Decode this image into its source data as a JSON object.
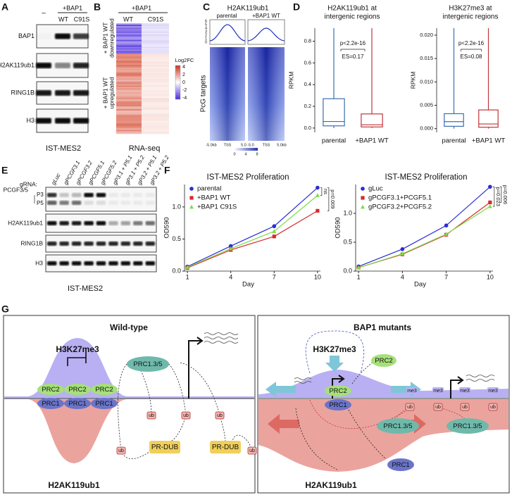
{
  "panels": {
    "A": {
      "label": "A",
      "lane_header": "–",
      "treatment": "+BAP1",
      "lanes": [
        "WT",
        "C91S"
      ],
      "rows": [
        "BAP1",
        "H2AK119ub1",
        "RING1B",
        "H3"
      ],
      "caption": "IST-MES2"
    },
    "B": {
      "label": "B",
      "treatment": "+BAP1",
      "columns": [
        "WT",
        "C91S"
      ],
      "groups": [
        [
          "+ BAP1 WT",
          "downregulated"
        ],
        [
          "+ BAP1 WT",
          "upregulated"
        ]
      ],
      "legend_title": "Log2FC",
      "legend_ticks": [
        4,
        2,
        0,
        -2,
        -4
      ],
      "caption": "RNA-seq"
    },
    "C": {
      "label": "C",
      "title": "H2AK119ub1",
      "columns": [
        "parental",
        "+BAP1 WT"
      ],
      "profile_ticks": [
        6,
        5,
        4,
        3,
        2,
        1,
        0
      ],
      "row_label": "PcG targets",
      "x_labels": [
        "-5.0kb",
        "TSS",
        "5.0",
        "-5.0",
        "TSS",
        "5.0kb"
      ],
      "scale_ticks": [
        0,
        4,
        8
      ]
    },
    "D": {
      "label": "D"
    },
    "E": {
      "label": "E",
      "guide_label": "gRNA:",
      "lanes": [
        "gLuc",
        "gPCGF3.1",
        "gPCGF3.2",
        "gPCGF5.1",
        "gPCGF5.2",
        "gP3.1 + P5.1",
        "gP3.1 + P5.2",
        "gP3.2 + P5.1",
        "gP3.2 + P5.2"
      ],
      "rows": [
        "PCGF3/5",
        "H2AK119ub1",
        "RING1B",
        "H3"
      ],
      "isoforms": [
        "P3",
        "P5"
      ],
      "caption": "IST-MES2"
    },
    "F": {
      "label": "F"
    },
    "G": {
      "label": "G",
      "wild_type": {
        "title": "Wild-type",
        "mark": "H3K27me3",
        "prc2": [
          "PRC2",
          "PRC2",
          "PRC2"
        ],
        "prc1": [
          "PRC1",
          "PRC1",
          "PRC1"
        ],
        "reader": "PRC1.3/5",
        "ub": [
          "ub",
          "ub",
          "ub",
          "ub",
          "ub"
        ],
        "dub": [
          "PR-DUB",
          "PR-DUB"
        ],
        "ubiquitin": "H2AK119ub1"
      },
      "mutant": {
        "title": "BAP1 mutants",
        "mark": "H3K27me3",
        "prc2": [
          "PRC2",
          "PRC2"
        ],
        "prc1": [
          "PRC1",
          "PRC1"
        ],
        "reader": [
          "PRC1.3/5",
          "PRC1.3/5"
        ],
        "me3": [
          "me3",
          "me3",
          "me3",
          "me3"
        ],
        "ub": [
          "ub",
          "ub",
          "ub",
          "ub"
        ],
        "ubiquitin": "H2AK119ub1"
      }
    }
  },
  "chart_data": [
    {
      "type": "box",
      "title": [
        "H2AK119ub1 at",
        "intergenic regions"
      ],
      "y_label": "RPKM",
      "categories": [
        "parental",
        "+BAP1 WT"
      ],
      "colors": [
        "#3a6fb0",
        "#c0363a"
      ],
      "whisker_low": [
        0,
        0
      ],
      "q1": [
        0.02,
        0.01
      ],
      "median": [
        0.06,
        0.03
      ],
      "q3": [
        0.27,
        0.13
      ],
      "whisker_high": [
        0.92,
        0.92
      ],
      "ylim": [
        -0.04,
        0.92
      ],
      "yticks": [
        {
          "value": 0,
          "label": "0.0"
        },
        {
          "value": 0.2,
          "label": "0.2"
        },
        {
          "value": 0.4,
          "label": "0.4"
        },
        {
          "value": 0.6,
          "label": "0.6"
        },
        {
          "value": 0.8,
          "label": "0.8"
        }
      ],
      "annotations": [
        "p<2.2e-16",
        "ES=0.17"
      ]
    },
    {
      "type": "box",
      "title": [
        "H3K27me3 at",
        "intergenic regions"
      ],
      "y_label": "RPKM",
      "categories": [
        "parental",
        "+BAP1 WT"
      ],
      "colors": [
        "#3a6fb0",
        "#c0363a"
      ],
      "whisker_low": [
        0,
        0
      ],
      "q1": [
        0.0005,
        0.0003
      ],
      "median": [
        0.0015,
        0.001
      ],
      "q3": [
        0.0032,
        0.004
      ],
      "whisker_high": [
        0.0215,
        0.0215
      ],
      "ylim": [
        -0.0008,
        0.0215
      ],
      "yticks": [
        {
          "value": 0,
          "label": "0.000"
        },
        {
          "value": 0.005,
          "label": "0.005"
        },
        {
          "value": 0.01,
          "label": "0.010"
        },
        {
          "value": 0.015,
          "label": "0.015"
        },
        {
          "value": 0.02,
          "label": "0.020"
        }
      ],
      "annotations": [
        "p<2.2e-16",
        "ES=0.08"
      ]
    },
    {
      "type": "line",
      "title": "IST-MES2 Proliferation",
      "x_label": "Day",
      "y_label": "OD590",
      "x": [
        1,
        4,
        7,
        10
      ],
      "xlim": [
        0.8,
        10.2
      ],
      "xticks": [
        1,
        4,
        7,
        10
      ],
      "ylim": [
        0,
        1.35
      ],
      "yticks": [
        {
          "value": 0,
          "label": "0.0"
        },
        {
          "value": 0.5,
          "label": "0.5"
        },
        {
          "value": 1,
          "label": "1.0"
        }
      ],
      "legend": "upper left",
      "series": [
        {
          "name": "parental",
          "color": "#2b2bd6",
          "marker": "circle",
          "values": [
            0.07,
            0.39,
            0.7,
            1.3
          ]
        },
        {
          "name": "+BAP1 WT",
          "color": "#d62b2b",
          "marker": "square",
          "values": [
            0.05,
            0.33,
            0.54,
            0.94
          ]
        },
        {
          "name": "+BAP1 C91S",
          "color": "#7ddc4a",
          "marker": "triangle",
          "values": [
            0.06,
            0.35,
            0.62,
            1.18
          ]
        }
      ],
      "annotations": [
        "ns",
        "p=0.009"
      ]
    },
    {
      "type": "line",
      "title": "IST-MES2 Proliferation",
      "x_label": "Day",
      "y_label": "OD590",
      "x": [
        1,
        4,
        7,
        10
      ],
      "xlim": [
        0.8,
        10.2
      ],
      "xticks": [
        1,
        4,
        7,
        10
      ],
      "ylim": [
        0,
        1.5
      ],
      "yticks": [
        {
          "value": 0,
          "label": "0.0"
        },
        {
          "value": 0.5,
          "label": "0.5"
        },
        {
          "value": 1,
          "label": "1.0"
        }
      ],
      "legend": "upper left",
      "series": [
        {
          "name": "gLuc",
          "color": "#2b2bd6",
          "marker": "circle",
          "values": [
            0.08,
            0.38,
            0.79,
            1.46
          ]
        },
        {
          "name": "gPCGF3.1+PCGF5.1",
          "color": "#d62b2b",
          "marker": "square",
          "values": [
            0.06,
            0.29,
            0.63,
            1.19
          ]
        },
        {
          "name": "gPCGF3.2+PCGF5.2",
          "color": "#7ddc4a",
          "marker": "triangle",
          "values": [
            0.06,
            0.3,
            0.64,
            1.12
          ]
        }
      ],
      "annotations": [
        "p=0.023",
        "p=0.006"
      ]
    }
  ]
}
